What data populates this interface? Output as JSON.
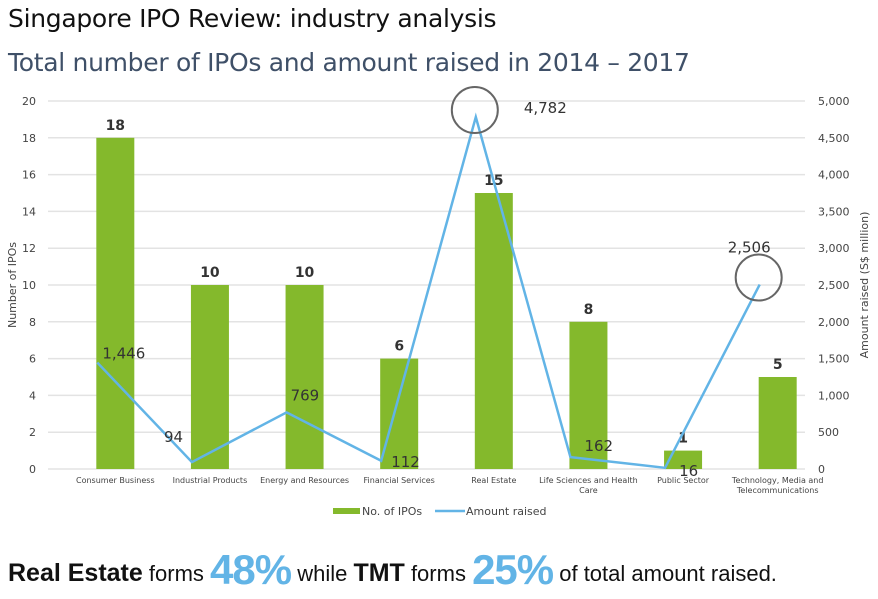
{
  "header": {
    "title": "Singapore IPO Review: industry analysis",
    "subtitle": "Total number of IPOs and amount raised in 2014 – 2017"
  },
  "colors": {
    "bar": "#84b92c",
    "line": "#62b4e6",
    "grid": "#e3e3e3",
    "highlight_circle": "#666666",
    "accent_pct": "#62b4e6"
  },
  "chart_data": {
    "type": "bar",
    "title": "Total number of IPOs and amount raised in 2014 – 2017",
    "categories": [
      "Consumer Business",
      "Industrial Products",
      "Energy and Resources",
      "Financial Services",
      "Real Estate",
      "Life Sciences and Health Care",
      "Public Sector",
      "Technology, Media and Telecommunications"
    ],
    "series": [
      {
        "name": "No. of IPOs",
        "type": "bar",
        "axis": "left",
        "values": [
          18,
          10,
          10,
          6,
          15,
          8,
          1,
          5
        ],
        "labels": [
          "18",
          "10",
          "10",
          "6",
          "15",
          "8",
          "1",
          "5"
        ]
      },
      {
        "name": "Amount raised",
        "type": "line",
        "axis": "right",
        "values": [
          1446,
          94,
          769,
          112,
          4782,
          162,
          16,
          2506
        ],
        "labels": [
          "1,446",
          "94",
          "769",
          "112",
          "4,782",
          "162",
          "16",
          "2,506"
        ]
      }
    ],
    "ylabel": "Number of IPOs",
    "y2label": "Amount raised (S$ million)",
    "ylim": [
      0,
      20
    ],
    "y2lim": [
      0,
      5000
    ],
    "yticks": [
      "0",
      "2",
      "4",
      "6",
      "8",
      "10",
      "12",
      "14",
      "16",
      "18",
      "20"
    ],
    "y2ticks": [
      "0",
      "500",
      "1,000",
      "1,500",
      "2,000",
      "2,500",
      "3,000",
      "3,500",
      "4,000",
      "4,500",
      "5,000"
    ],
    "grid": true,
    "legend": {
      "placement": "bottom-center",
      "entries": [
        "No. of IPOs",
        "Amount raised"
      ]
    },
    "highlighted": [
      "Real Estate",
      "Technology, Media and Telecommunications"
    ]
  },
  "footer": {
    "part1": "Real Estate",
    "part2": " forms ",
    "pct1": "48%",
    "part3": " while ",
    "part4": "TMT",
    "part5": " forms ",
    "pct2": "25%",
    "part6": " of total amount raised."
  }
}
